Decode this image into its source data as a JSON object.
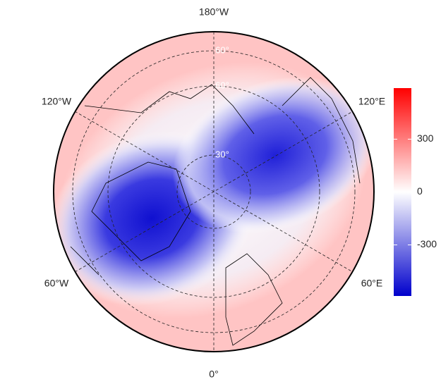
{
  "map": {
    "longitude_labels": [
      "180°W",
      "120°W",
      "120°E",
      "60°W",
      "60°E",
      "0°"
    ],
    "latitude_labels": [
      "60°",
      "60°",
      "30°"
    ]
  },
  "colorbar": {
    "lim": [
      -590,
      590
    ],
    "ticks": [
      300,
      0,
      -300
    ],
    "colors": [
      "#0000cc",
      "#ffffff",
      "#ff0000"
    ]
  }
}
